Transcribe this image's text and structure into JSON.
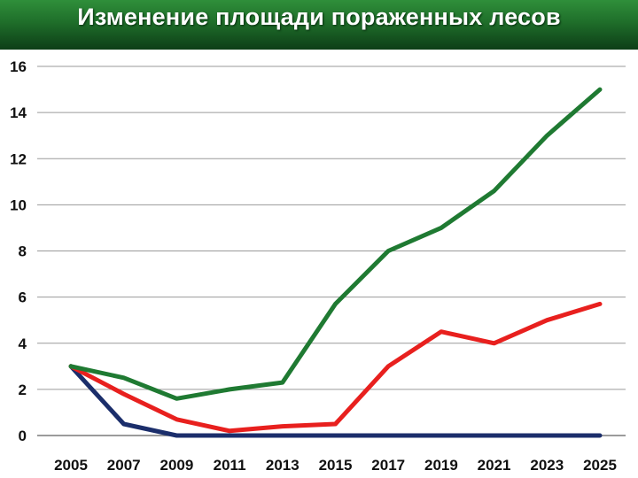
{
  "title": "Изменение площади пораженных лесов",
  "chart_data": {
    "type": "line",
    "title": "Изменение площади пораженных лесов",
    "xlabel": "",
    "ylabel": "",
    "x": [
      2005,
      2007,
      2009,
      2011,
      2013,
      2015,
      2017,
      2019,
      2021,
      2023,
      2025
    ],
    "ylim": [
      0,
      16
    ],
    "yticks": [
      0,
      2,
      4,
      6,
      8,
      10,
      12,
      14,
      16
    ],
    "ytick_labels": [
      "0",
      "2",
      "4",
      "6",
      "8",
      "10",
      "12",
      "14",
      "16"
    ],
    "xtick_labels": [
      "2005",
      "2007",
      "2009",
      "2011",
      "2013",
      "2015",
      "2017",
      "2019",
      "2021",
      "2023",
      "2025"
    ],
    "grid": true,
    "series": [
      {
        "color": "#1f7a32",
        "values": [
          3.0,
          2.5,
          1.6,
          2.0,
          2.3,
          5.7,
          8.0,
          9.0,
          10.6,
          13.0,
          15.0
        ]
      },
      {
        "color": "#e8201e",
        "values": [
          3.0,
          1.8,
          0.7,
          0.2,
          0.4,
          0.5,
          3.0,
          4.5,
          4.0,
          5.0,
          5.7
        ]
      },
      {
        "color": "#1b2e6b",
        "values": [
          3.0,
          0.5,
          0.0,
          0.0,
          0.0,
          0.0,
          0.0,
          0.0,
          0.0,
          0.0,
          0.0
        ]
      }
    ]
  }
}
